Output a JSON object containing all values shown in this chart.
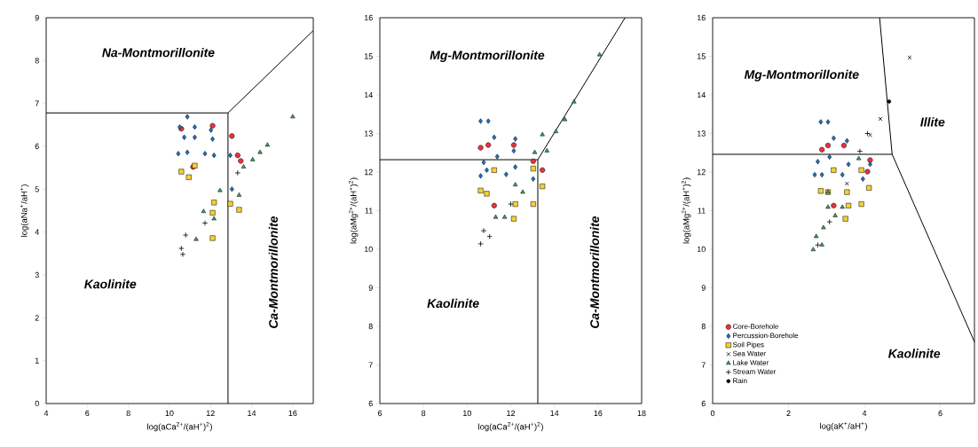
{
  "chart_data": [
    {
      "type": "scatter",
      "xlabel": "log(aCa$^{2+}$/(aH$^{+}$)$^{2}$)",
      "ylabel": "log(aNa$^{+}$/aH$^{+}$)",
      "xlim": [
        4,
        17
      ],
      "ylim": [
        0,
        9
      ],
      "xticks": [
        4,
        6,
        8,
        10,
        12,
        14,
        16
      ],
      "yticks": [
        0,
        1,
        2,
        3,
        4,
        5,
        6,
        7,
        8,
        9
      ],
      "annotations": [
        "Na-Montmorillonite",
        "Kaolinite",
        "Ca-Montmorillonite"
      ],
      "series": [
        {
          "type": "line",
          "color": "#000000",
          "x": [
            4,
            12.85,
            12.85
          ],
          "values": [
            6.78,
            6.78,
            0
          ]
        },
        {
          "type": "line",
          "color": "#000000",
          "x": [
            12.85,
            17
          ],
          "values": [
            6.78,
            8.7
          ]
        },
        {
          "color": "#e8343a",
          "marker": "circle",
          "x": [
            10.58,
            12.1,
            13.04,
            13.32,
            13.47,
            11.15
          ],
          "values": [
            6.41,
            6.48,
            6.24,
            5.79,
            5.66,
            5.52
          ]
        },
        {
          "color": "#1f6fc0",
          "marker": "diamond",
          "x": [
            10.87,
            10.5,
            11.23,
            10.72,
            11.23,
            12.02,
            12.1,
            10.43,
            10.87,
            11.73,
            12.17,
            12.96,
            13.04
          ],
          "values": [
            6.69,
            6.45,
            6.45,
            6.21,
            6.21,
            6.38,
            6.17,
            5.83,
            5.86,
            5.83,
            5.79,
            5.79,
            5.0
          ]
        },
        {
          "color": "#f5d033",
          "marker": "square",
          "x": [
            10.58,
            10.94,
            11.23,
            12.17,
            12.1,
            12.96,
            13.39,
            12.1
          ],
          "values": [
            5.41,
            5.28,
            5.55,
            4.69,
            4.45,
            4.66,
            4.52,
            3.86
          ]
        },
        {
          "color": "#3aa35a",
          "marker": "triangle",
          "x": [
            16.0,
            14.77,
            14.41,
            14.05,
            13.61,
            12.46,
            13.39,
            11.66,
            12.17,
            11.3
          ],
          "values": [
            6.69,
            6.03,
            5.86,
            5.69,
            5.52,
            4.97,
            4.86,
            4.48,
            4.31,
            3.83
          ]
        },
        {
          "color": "#000000",
          "marker": "plus",
          "x": [
            13.32,
            11.73,
            10.79,
            10.58,
            10.65
          ],
          "values": [
            5.38,
            4.21,
            3.93,
            3.62,
            3.48
          ]
        }
      ]
    },
    {
      "type": "scatter",
      "xlabel": "log(aCa$^{2+}$/(aH$^{+}$)$^{2}$)",
      "ylabel": "log(aMg$^{2+}$/(aH$^{+}$)$^{2}$)",
      "xlim": [
        6,
        18
      ],
      "ylim": [
        6,
        16
      ],
      "xticks": [
        6,
        8,
        10,
        12,
        14,
        16,
        18
      ],
      "yticks": [
        6,
        7,
        8,
        9,
        10,
        11,
        12,
        13,
        14,
        15,
        16
      ],
      "annotations": [
        "Mg-Montmorillonite",
        "Kaolinite",
        "Ca-Montmorillonite"
      ],
      "series": [
        {
          "type": "line",
          "color": "#000000",
          "x": [
            6,
            13.24,
            13.24
          ],
          "values": [
            12.32,
            12.32,
            6
          ]
        },
        {
          "type": "line",
          "color": "#000000",
          "x": [
            13.24,
            17.24
          ],
          "values": [
            12.32,
            16
          ]
        },
        {
          "color": "#e8343a",
          "marker": "circle",
          "x": [
            10.62,
            10.97,
            12.14,
            13.03,
            13.45,
            11.24
          ],
          "values": [
            12.63,
            12.7,
            12.7,
            12.28,
            12.05,
            11.13
          ]
        },
        {
          "color": "#1f6fc0",
          "marker": "diamond",
          "x": [
            10.62,
            10.97,
            11.24,
            12.21,
            12.14,
            11.38,
            10.76,
            10.9,
            10.62,
            11.79,
            12.21,
            13.03
          ],
          "values": [
            13.32,
            13.32,
            12.9,
            12.86,
            12.55,
            12.4,
            12.25,
            12.05,
            11.9,
            11.94,
            12.13,
            11.82
          ]
        },
        {
          "color": "#f5d033",
          "marker": "square",
          "x": [
            11.24,
            10.62,
            10.9,
            13.03,
            13.45,
            12.21,
            12.14,
            13.03
          ],
          "values": [
            12.05,
            11.52,
            11.44,
            12.09,
            11.63,
            11.17,
            10.79,
            11.17
          ]
        },
        {
          "color": "#3aa35a",
          "marker": "triangle",
          "x": [
            16.07,
            14.9,
            14.48,
            14.07,
            13.45,
            13.1,
            13.66,
            12.21,
            12.55,
            11.31,
            11.72
          ],
          "values": [
            15.04,
            13.82,
            13.36,
            13.05,
            12.97,
            12.51,
            12.55,
            11.67,
            11.48,
            10.83,
            10.83
          ]
        },
        {
          "color": "#000000",
          "marker": "plus",
          "x": [
            10.76,
            10.62,
            11.03,
            12.0
          ],
          "values": [
            10.48,
            10.14,
            10.33,
            11.17
          ]
        }
      ]
    },
    {
      "type": "scatter",
      "xlabel": "log(aK$^{+}$/aH$^{+}$)",
      "ylabel": "log(aMg$^{2+}$/(aH$^{+}$)$^{2}$)",
      "xlim": [
        0,
        6.9
      ],
      "ylim": [
        6,
        16
      ],
      "xticks": [
        0,
        2,
        4,
        6
      ],
      "yticks": [
        6,
        7,
        8,
        9,
        10,
        11,
        12,
        13,
        14,
        15,
        16
      ],
      "legend": "bottom left",
      "annotations": [
        "Mg-Montmorillonite",
        "Illite",
        "Kaolinite"
      ],
      "series": [
        {
          "type": "line",
          "color": "#000000",
          "x": [
            0,
            4.73,
            4.4
          ],
          "values": [
            12.46,
            12.46,
            16
          ]
        },
        {
          "type": "line",
          "color": "#000000",
          "x": [
            4.73,
            6.9
          ],
          "values": [
            12.46,
            7.6
          ]
        },
        {
          "name": "Core-Borehole",
          "color": "#e8343a",
          "marker": "circle",
          "x": [
            2.88,
            3.04,
            3.46,
            4.15,
            4.08,
            3.19
          ],
          "values": [
            12.58,
            12.69,
            12.69,
            12.31,
            12.01,
            11.13
          ]
        },
        {
          "name": "Percussion-Borehole",
          "color": "#1f6fc0",
          "marker": "diamond",
          "x": [
            2.85,
            3.04,
            3.19,
            3.54,
            2.77,
            3.08,
            2.69,
            2.88,
            3.42,
            3.58,
            3.96,
            4.15
          ],
          "values": [
            13.3,
            13.3,
            12.88,
            12.81,
            12.27,
            12.39,
            11.93,
            11.93,
            11.93,
            12.2,
            11.82,
            12.2
          ]
        },
        {
          "name": "Soil Pipes",
          "color": "#f5d033",
          "marker": "square",
          "x": [
            2.85,
            3.04,
            3.19,
            3.54,
            3.58,
            3.5,
            3.92,
            4.12,
            3.92
          ],
          "values": [
            11.51,
            11.48,
            12.05,
            11.48,
            11.13,
            10.79,
            12.05,
            11.59,
            11.17
          ]
        },
        {
          "name": "Sea Water",
          "color": "#000000",
          "marker": "cross",
          "x": [
            5.19,
            4.42,
            4.15,
            3.54
          ],
          "values": [
            14.97,
            13.38,
            12.96,
            11.7
          ]
        },
        {
          "name": "Lake Water",
          "color": "#3aa35a",
          "marker": "triangle",
          "x": [
            3.85,
            3.04,
            3.04,
            3.42,
            3.23,
            2.92,
            2.73,
            2.65,
            2.88
          ],
          "values": [
            12.35,
            11.48,
            11.09,
            11.09,
            10.87,
            10.56,
            10.33,
            9.99,
            10.11
          ]
        },
        {
          "name": "Stream Water",
          "color": "#000000",
          "marker": "plus",
          "x": [
            3.08,
            2.77,
            4.08,
            3.88
          ],
          "values": [
            10.71,
            10.11,
            13.0,
            12.54
          ]
        },
        {
          "name": "Rain",
          "color": "#000000",
          "marker": "circle",
          "x": [
            4.65
          ],
          "values": [
            13.83
          ]
        }
      ]
    }
  ]
}
